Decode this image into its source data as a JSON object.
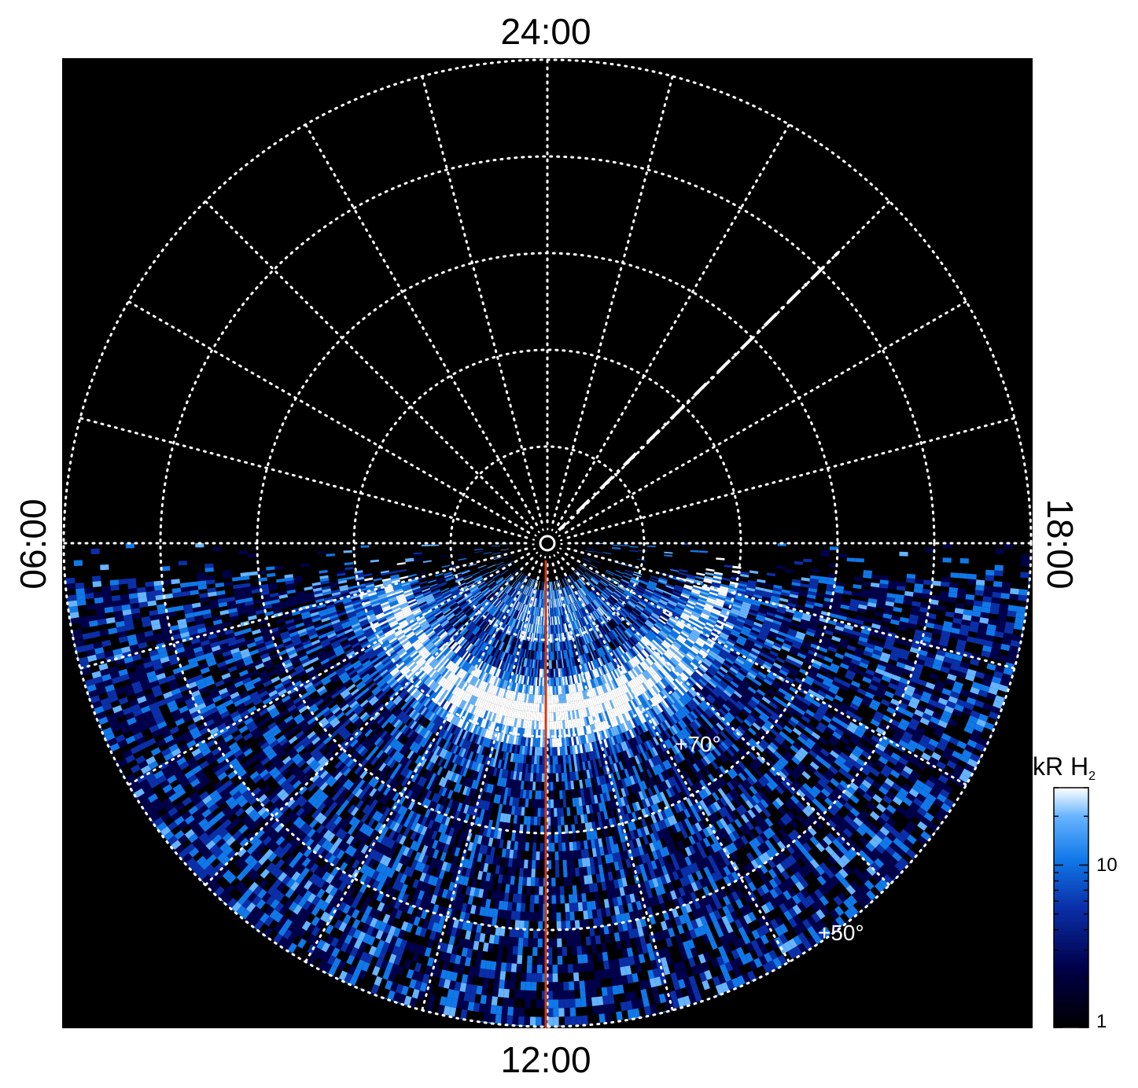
{
  "projection": {
    "type": "polar",
    "hemisphere_pole_latitude": 90,
    "outer_latitude": 40,
    "latitude_circles": [
      80,
      70,
      60,
      50,
      40
    ],
    "meridian_step_hours": 1
  },
  "local_time_labels": {
    "top": "24:00",
    "bottom": "12:00",
    "left": "06:00",
    "right": "18:00"
  },
  "latitude_labels": {
    "lat70": "+70°",
    "lat50": "+50°"
  },
  "overlays": {
    "red_line_local_time": "12:00",
    "red_line_color": "#d03a10",
    "dashed_line_color": "#ffffff",
    "grid_color": "#ffffff",
    "background_color": "#000000"
  },
  "colorbar": {
    "title_main": "kR H",
    "title_sub": "2",
    "scale": "log",
    "min": 1,
    "max": 30,
    "tick_labels": [
      "10",
      "1"
    ],
    "colors": [
      "#000000",
      "#00004a",
      "#0a2fa8",
      "#1078e8",
      "#66b4ff",
      "#ffffff"
    ]
  },
  "chart_data": {
    "type": "heatmap",
    "description_units": "latitude (deg), local time (h), brightness (kR H2)",
    "colorbar_range": [
      1,
      30
    ],
    "colorbar_scale": "log",
    "main_oval": {
      "latitude_center": 73,
      "local_time_range": [
        "06:00",
        "18:00"
      ],
      "peak_kR": 30
    }
  }
}
